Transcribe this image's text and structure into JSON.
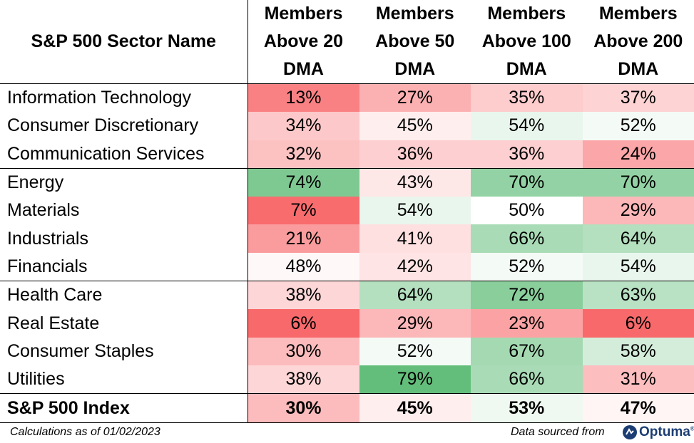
{
  "chart_data": {
    "type": "table",
    "columns": [
      "S&P 500 Sector Name",
      "Members Above 20 DMA",
      "Members Above 50 DMA",
      "Members Above 100 DMA",
      "Members Above 200 DMA"
    ],
    "column_lines": [
      [
        "S&P 500 Sector Name"
      ],
      [
        "Members",
        "Above 20",
        "DMA"
      ],
      [
        "Members",
        "Above 50",
        "DMA"
      ],
      [
        "Members",
        "Above 100",
        "DMA"
      ],
      [
        "Members",
        "Above 200",
        "DMA"
      ]
    ],
    "rows": [
      {
        "sector": "Information Technology",
        "values": [
          13,
          27,
          35,
          37
        ],
        "labels": [
          "13%",
          "27%",
          "35%",
          "37%"
        ]
      },
      {
        "sector": "Consumer Discretionary",
        "values": [
          34,
          45,
          54,
          52
        ],
        "labels": [
          "34%",
          "45%",
          "54%",
          "52%"
        ]
      },
      {
        "sector": "Communication Services",
        "values": [
          32,
          36,
          36,
          24
        ],
        "labels": [
          "32%",
          "36%",
          "36%",
          "24%"
        ]
      },
      {
        "sector": "Energy",
        "values": [
          74,
          43,
          70,
          70
        ],
        "labels": [
          "74%",
          "43%",
          "70%",
          "70%"
        ]
      },
      {
        "sector": "Materials",
        "values": [
          7,
          54,
          50,
          29
        ],
        "labels": [
          "7%",
          "54%",
          "50%",
          "29%"
        ]
      },
      {
        "sector": "Industrials",
        "values": [
          21,
          41,
          66,
          64
        ],
        "labels": [
          "21%",
          "41%",
          "66%",
          "64%"
        ]
      },
      {
        "sector": "Financials",
        "values": [
          48,
          42,
          52,
          54
        ],
        "labels": [
          "48%",
          "42%",
          "52%",
          "54%"
        ]
      },
      {
        "sector": "Health Care",
        "values": [
          38,
          64,
          72,
          63
        ],
        "labels": [
          "38%",
          "64%",
          "72%",
          "63%"
        ]
      },
      {
        "sector": "Real Estate",
        "values": [
          6,
          29,
          23,
          6
        ],
        "labels": [
          "6%",
          "29%",
          "23%",
          "6%"
        ]
      },
      {
        "sector": "Consumer Staples",
        "values": [
          30,
          52,
          67,
          58
        ],
        "labels": [
          "30%",
          "52%",
          "67%",
          "58%"
        ]
      },
      {
        "sector": "Utilities",
        "values": [
          38,
          79,
          66,
          31
        ],
        "labels": [
          "38%",
          "79%",
          "66%",
          "31%"
        ]
      }
    ],
    "index_row": {
      "sector": "S&P 500 Index",
      "values": [
        30,
        45,
        53,
        47
      ],
      "labels": [
        "30%",
        "45%",
        "53%",
        "47%"
      ]
    },
    "group_sizes": [
      3,
      4,
      4
    ],
    "color_scale": {
      "low": "#f8696b",
      "mid": "#ffffff",
      "high": "#63be7b",
      "low_value": 6,
      "mid_value": 50,
      "high_value": 79
    }
  },
  "footer": {
    "note": "Calculations as of 01/02/2023",
    "source_label": "Data sourced from",
    "logo_text": "Optuma",
    "logo_tm": "®"
  }
}
